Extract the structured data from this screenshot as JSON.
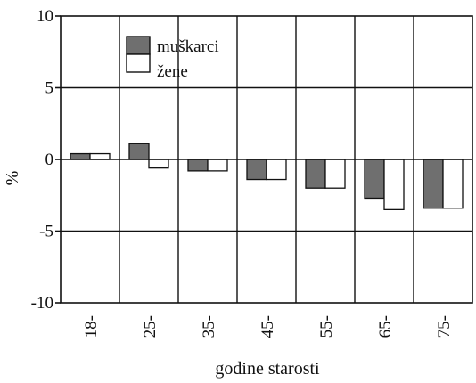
{
  "chart_data": {
    "type": "bar",
    "categories": [
      "18-",
      "25-",
      "35-",
      "45-",
      "55-",
      "65-",
      "75-"
    ],
    "series": [
      {
        "name": "muškarci",
        "values": [
          0.4,
          1.1,
          -0.8,
          -1.4,
          -2.0,
          -2.7,
          -3.4
        ]
      },
      {
        "name": "žene",
        "values": [
          0.4,
          -0.6,
          -0.8,
          -1.4,
          -2.0,
          -3.5,
          -3.4
        ]
      }
    ],
    "xlabel": "godine starosti",
    "ylabel": "%",
    "ylim": [
      -10,
      10
    ],
    "yticks": [
      10,
      5,
      0,
      -5,
      -10
    ],
    "ytick_labels": [
      "10",
      "5",
      "0",
      "-5",
      "-10"
    ],
    "grid": true,
    "legend_position": "top-left",
    "colors": {
      "series_fill": [
        "#6f6f6f",
        "#ffffff"
      ],
      "stroke": "#111111",
      "grid": "#111111"
    }
  }
}
